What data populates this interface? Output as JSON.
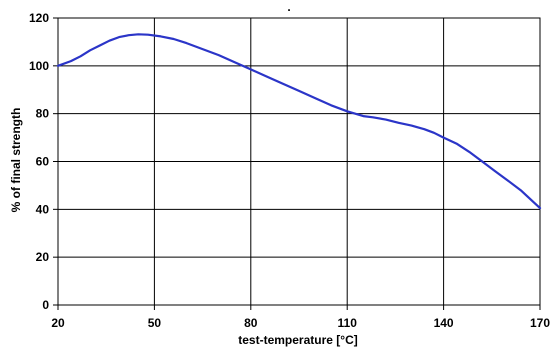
{
  "chart_data": {
    "type": "line",
    "title": ".",
    "xlabel": "test-temperature [°C]",
    "ylabel": "% of final strength",
    "xlim": [
      20,
      170
    ],
    "ylim": [
      0,
      120
    ],
    "xticks": [
      20,
      50,
      80,
      110,
      140,
      170
    ],
    "yticks": [
      0,
      20,
      40,
      60,
      80,
      100,
      120
    ],
    "grid": true,
    "line_color": "#2b35c8",
    "series": [
      {
        "x": [
          20,
          24,
          27,
          30,
          33,
          36,
          39,
          42,
          45,
          48,
          52,
          56,
          60,
          65,
          70,
          75,
          80,
          85,
          90,
          95,
          100,
          105,
          110,
          115,
          118,
          122,
          126,
          130,
          134,
          137,
          140,
          144,
          148,
          152,
          156,
          160,
          164,
          168,
          170
        ],
        "y": [
          100,
          102,
          104,
          106.5,
          108.5,
          110.5,
          112,
          112.8,
          113.2,
          113,
          112.3,
          111.2,
          109.5,
          107,
          104.5,
          101.5,
          98.5,
          95.5,
          92.5,
          89.5,
          86.5,
          83.5,
          81,
          79,
          78.5,
          77.5,
          76.2,
          75,
          73.5,
          72,
          70,
          67.5,
          64,
          60,
          56,
          52,
          48,
          43,
          40.5
        ]
      }
    ]
  }
}
